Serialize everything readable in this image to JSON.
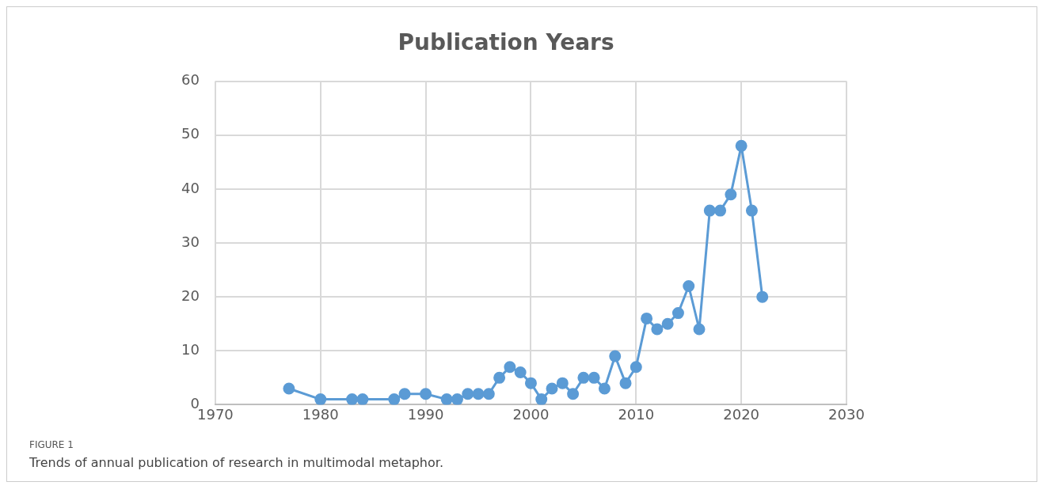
{
  "chart_data": {
    "type": "line",
    "title": "Publication Years",
    "annotations": [
      "FIGURE 1",
      "Trends of annual publication of research in multimodal metaphor."
    ],
    "x": [
      1977,
      1980,
      1983,
      1984,
      1987,
      1988,
      1990,
      1992,
      1993,
      1994,
      1995,
      1996,
      1997,
      1998,
      1999,
      2000,
      2001,
      2002,
      2003,
      2004,
      2005,
      2006,
      2007,
      2008,
      2009,
      2010,
      2011,
      2012,
      2013,
      2014,
      2015,
      2016,
      2017,
      2018,
      2019,
      2020,
      2021,
      2022
    ],
    "series": [
      {
        "color": "#5b9bd5",
        "values": [
          3,
          1,
          1,
          1,
          1,
          2,
          2,
          1,
          1,
          2,
          2,
          2,
          5,
          7,
          6,
          4,
          1,
          3,
          4,
          2,
          5,
          5,
          3,
          9,
          4,
          7,
          16,
          14,
          15,
          17,
          22,
          14,
          36,
          36,
          39,
          48,
          36,
          20
        ]
      }
    ],
    "xlim": [
      1970,
      2030
    ],
    "xticks": [
      1970,
      1980,
      1990,
      2000,
      2010,
      2020,
      2030
    ],
    "ylim": [
      0,
      60
    ],
    "yticks": [
      0,
      10,
      20,
      30,
      40,
      50,
      60
    ],
    "grid": true,
    "legend": false,
    "marker": "circle",
    "line_style": "solid"
  }
}
